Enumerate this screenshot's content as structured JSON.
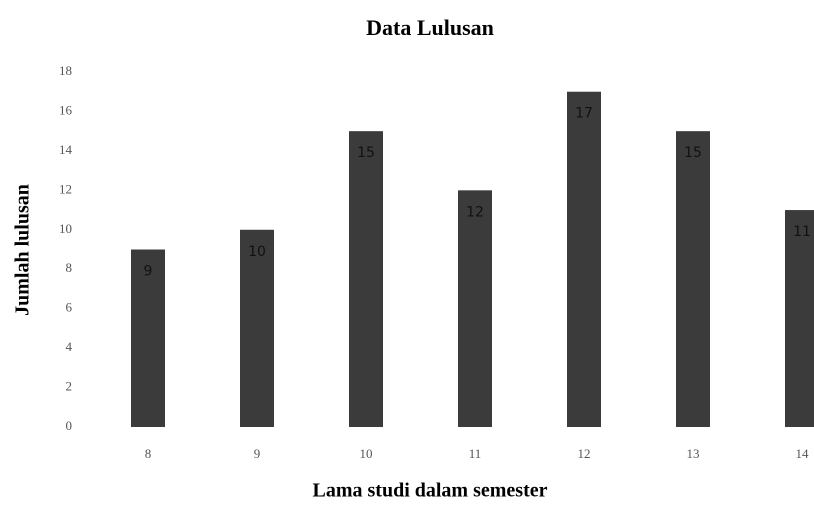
{
  "chart_data": {
    "type": "bar",
    "title": "Data Lulusan",
    "x_label": "Lama studi dalam semester",
    "y_label": "Jumlah lulusan",
    "categories": [
      "8",
      "9",
      "10",
      "11",
      "12",
      "13",
      "14"
    ],
    "values": [
      9,
      10,
      15,
      12,
      17,
      15,
      11
    ],
    "color": "#3b3b3b",
    "ylim": [
      0,
      18
    ],
    "yticks": [
      0,
      2,
      4,
      6,
      8,
      10,
      12,
      14,
      16,
      18
    ],
    "grid": false
  }
}
